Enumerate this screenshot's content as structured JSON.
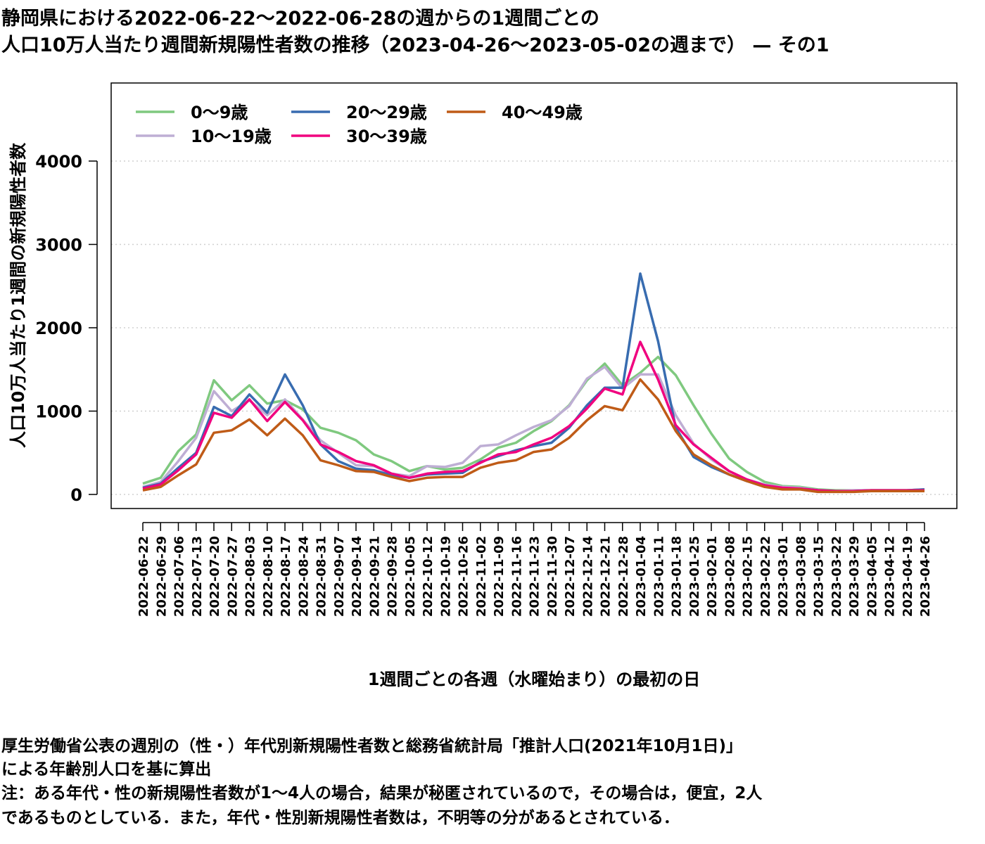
{
  "title": {
    "line1": "静岡県における2022-06-22〜2022-06-28の週からの1週間ごとの",
    "line2": "人口10万人当たり週間新規陽性者数の推移（2023-04-26〜2023-05-02の週まで） — その1"
  },
  "notes": {
    "line1": "厚生労働省公表の週別の（性・）年代別新規陽性者数と総務省統計局「推計人口(2021年10月1日)」",
    "line2": "による年齢別人口を基に算出",
    "line3": "注：ある年代・性の新規陽性者数が1〜4人の場合，結果が秘匿されているので，その場合は，便宜，2人",
    "line4": "であるものとしている．また，年代・性別新規陽性者数は，不明等の分があるとされている．"
  },
  "chart_data": {
    "type": "line",
    "xlabel": "1週間ごとの各週（水曜始まり）の最初の日",
    "ylabel": "人口10万人当たり1週間の新規陽性者数",
    "ylim": [
      0,
      4900
    ],
    "yticks": [
      0,
      1000,
      2000,
      3000,
      4000
    ],
    "grid": "horizontal dotted",
    "legend_position": "top-left",
    "x": [
      "2022-06-22",
      "2022-06-29",
      "2022-07-06",
      "2022-07-13",
      "2022-07-20",
      "2022-07-27",
      "2022-08-03",
      "2022-08-10",
      "2022-08-17",
      "2022-08-24",
      "2022-08-31",
      "2022-09-07",
      "2022-09-14",
      "2022-09-21",
      "2022-09-28",
      "2022-10-05",
      "2022-10-12",
      "2022-10-19",
      "2022-10-26",
      "2022-11-02",
      "2022-11-09",
      "2022-11-16",
      "2022-11-23",
      "2022-11-30",
      "2022-12-07",
      "2022-12-14",
      "2022-12-21",
      "2022-12-28",
      "2023-01-04",
      "2023-01-11",
      "2023-01-18",
      "2023-01-25",
      "2023-02-01",
      "2023-02-08",
      "2023-02-15",
      "2023-02-22",
      "2023-03-01",
      "2023-03-08",
      "2023-03-15",
      "2023-03-22",
      "2023-03-29",
      "2023-04-05",
      "2023-04-12",
      "2023-04-19",
      "2023-04-26"
    ],
    "series": [
      {
        "name": "0〜9歳",
        "color": "#7fc97f",
        "values": [
          130,
          200,
          520,
          720,
          1370,
          1130,
          1310,
          1090,
          1130,
          1020,
          800,
          740,
          650,
          480,
          400,
          280,
          340,
          300,
          320,
          420,
          560,
          620,
          760,
          880,
          1070,
          1370,
          1570,
          1310,
          1460,
          1650,
          1430,
          1070,
          730,
          430,
          270,
          150,
          100,
          90,
          60,
          50,
          50,
          50,
          50,
          50,
          60
        ]
      },
      {
        "name": "10〜19歳",
        "color": "#beaed4",
        "values": [
          90,
          150,
          400,
          680,
          1240,
          1000,
          1130,
          950,
          1140,
          900,
          650,
          500,
          350,
          340,
          250,
          220,
          340,
          330,
          380,
          580,
          600,
          710,
          810,
          890,
          1060,
          1390,
          1530,
          1270,
          1440,
          1440,
          950,
          610,
          420,
          280,
          180,
          120,
          90,
          80,
          50,
          40,
          50,
          50,
          50,
          50,
          60
        ]
      },
      {
        "name": "20〜29歳",
        "color": "#386cb0",
        "values": [
          80,
          130,
          320,
          500,
          1050,
          940,
          1200,
          980,
          1440,
          1070,
          600,
          400,
          310,
          290,
          230,
          200,
          240,
          250,
          260,
          390,
          460,
          530,
          580,
          620,
          800,
          1070,
          1280,
          1280,
          2650,
          1840,
          800,
          450,
          330,
          240,
          160,
          110,
          70,
          70,
          50,
          40,
          40,
          50,
          50,
          50,
          60
        ]
      },
      {
        "name": "30〜39歳",
        "color": "#f0027f",
        "values": [
          70,
          120,
          290,
          480,
          980,
          920,
          1140,
          880,
          1110,
          890,
          600,
          510,
          400,
          350,
          250,
          200,
          250,
          270,
          280,
          380,
          480,
          510,
          600,
          680,
          820,
          1030,
          1270,
          1200,
          1830,
          1380,
          830,
          600,
          440,
          280,
          180,
          110,
          80,
          70,
          50,
          40,
          40,
          50,
          50,
          50,
          50
        ]
      },
      {
        "name": "40〜49歳",
        "color": "#bf5b17",
        "values": [
          50,
          90,
          230,
          360,
          740,
          770,
          900,
          710,
          910,
          710,
          410,
          350,
          280,
          270,
          210,
          160,
          200,
          210,
          210,
          320,
          380,
          410,
          510,
          540,
          680,
          890,
          1060,
          1010,
          1380,
          1140,
          760,
          480,
          350,
          240,
          160,
          90,
          60,
          60,
          30,
          30,
          30,
          40,
          40,
          40,
          40
        ]
      }
    ]
  }
}
